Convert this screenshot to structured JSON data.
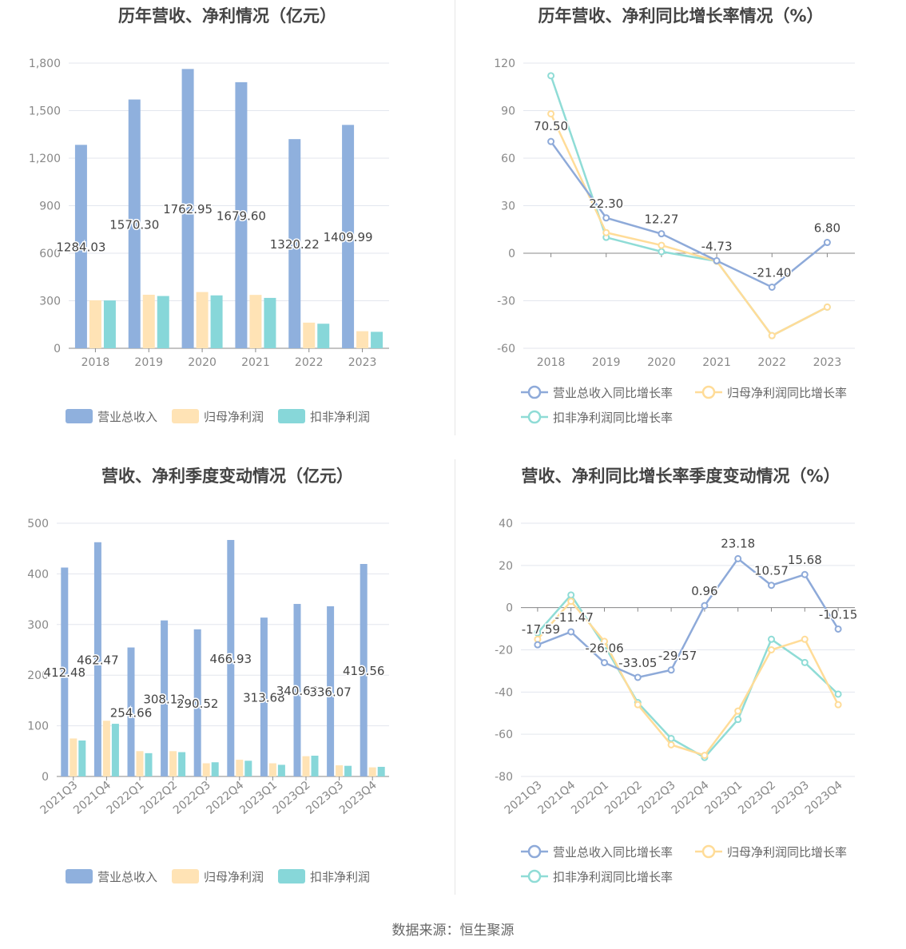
{
  "source": "数据来源：恒生聚源",
  "colors": {
    "revenue": "#8fb0dd",
    "parent_profit": "#ffe3b5",
    "deducted_profit": "#87d7d9",
    "revenue_line": "#8eaad9",
    "parent_line": "#ffdc98",
    "deducted_line": "#8fdcd6"
  },
  "chart_data": [
    {
      "id": "annual",
      "type": "bar",
      "title": "历年营收、净利情况（亿元）",
      "categories": [
        "2018",
        "2019",
        "2020",
        "2021",
        "2022",
        "2023"
      ],
      "ylim": [
        0,
        1800
      ],
      "yticks": [
        "0",
        "300",
        "600",
        "900",
        "1,200",
        "1,500",
        "1,800"
      ],
      "series": [
        {
          "name": "营业总收入",
          "values": [
            1284.03,
            1570.3,
            1762.95,
            1679.6,
            1320.22,
            1409.99
          ],
          "labels": [
            "1284.03",
            "1570.30",
            "1762.95",
            "1679.60",
            "1320.22",
            "1409.99"
          ]
        },
        {
          "name": "归母净利润",
          "values": [
            303,
            338,
            355,
            337,
            162,
            108
          ]
        },
        {
          "name": "扣非净利润",
          "values": [
            302,
            330,
            334,
            318,
            155,
            104
          ]
        }
      ],
      "legend": "bottom"
    },
    {
      "id": "annual_growth",
      "type": "line",
      "title": "历年营收、净利同比增长率情况（%）",
      "categories": [
        "2018",
        "2019",
        "2020",
        "2021",
        "2022",
        "2023"
      ],
      "ylim": [
        -60,
        120
      ],
      "yticks": [
        "-60",
        "-30",
        "0",
        "30",
        "60",
        "90",
        "120"
      ],
      "series": [
        {
          "name": "营业总收入同比增长率",
          "values": [
            70.5,
            22.3,
            12.27,
            -4.73,
            -21.4,
            6.8
          ],
          "labels": [
            "70.50",
            "22.30",
            "12.27",
            "-4.73",
            "-21.40",
            "6.80"
          ]
        },
        {
          "name": "归母净利润同比增长率",
          "values": [
            88,
            13,
            5,
            -5,
            -52,
            -34
          ]
        },
        {
          "name": "扣非净利润同比增长率",
          "values": [
            112,
            10,
            1,
            -5,
            -52,
            -34
          ]
        }
      ],
      "legend": "bottom"
    },
    {
      "id": "quarterly",
      "type": "bar",
      "title": "营收、净利季度变动情况（亿元）",
      "categories": [
        "2021Q3",
        "2021Q4",
        "2022Q1",
        "2022Q2",
        "2022Q3",
        "2022Q4",
        "2023Q1",
        "2023Q2",
        "2023Q3",
        "2023Q4"
      ],
      "ylim": [
        0,
        500
      ],
      "yticks": [
        "0",
        "100",
        "200",
        "300",
        "400",
        "500"
      ],
      "series": [
        {
          "name": "营业总收入",
          "values": [
            412.48,
            462.47,
            254.66,
            308.12,
            290.52,
            466.93,
            313.68,
            340.63,
            336.07,
            419.56
          ],
          "labels": [
            "412.48",
            "462.47",
            "254.66",
            "308.12",
            "290.52",
            "466.93",
            "313.68",
            "340.63",
            "336.07",
            "419.56"
          ]
        },
        {
          "name": "归母净利润",
          "values": [
            75,
            110,
            50,
            50,
            26,
            33,
            26,
            40,
            22,
            18
          ]
        },
        {
          "name": "扣非净利润",
          "values": [
            71,
            104,
            46,
            48,
            28,
            31,
            23,
            41,
            21,
            19
          ]
        }
      ],
      "legend": "bottom"
    },
    {
      "id": "quarterly_growth",
      "type": "line",
      "title": "营收、净利同比增长率季度变动情况（%）",
      "categories": [
        "2021Q3",
        "2021Q4",
        "2022Q1",
        "2022Q2",
        "2022Q3",
        "2022Q4",
        "2023Q1",
        "2023Q2",
        "2023Q3",
        "2023Q4"
      ],
      "ylim": [
        -80,
        40
      ],
      "yticks": [
        "-80",
        "-60",
        "-40",
        "-20",
        "0",
        "20",
        "40"
      ],
      "series": [
        {
          "name": "营业总收入同比增长率",
          "values": [
            -17.59,
            -11.47,
            -26.06,
            -33.05,
            -29.57,
            0.96,
            23.18,
            10.57,
            15.68,
            -10.15
          ],
          "labels": [
            "-17.59",
            "-11.47",
            "-26.06",
            "-33.05",
            "-29.57",
            "0.96",
            "23.18",
            "10.57",
            "15.68",
            "-10.15"
          ]
        },
        {
          "name": "归母净利润同比增长率",
          "values": [
            -15,
            3,
            -16,
            -46,
            -65,
            -70,
            -49,
            -20,
            -15,
            -46
          ]
        },
        {
          "name": "扣非净利润同比增长率",
          "values": [
            -12,
            6,
            -18,
            -45,
            -62,
            -71,
            -53,
            -15,
            -26,
            -41
          ]
        }
      ],
      "legend": "bottom"
    }
  ]
}
